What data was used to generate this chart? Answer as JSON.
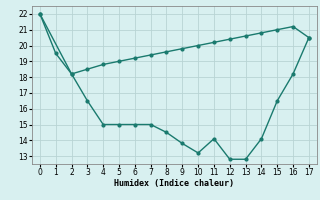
{
  "line1_x": [
    0,
    1,
    2,
    3,
    4,
    5,
    6,
    7,
    8,
    9,
    10,
    11,
    12,
    13,
    14,
    15,
    16,
    17
  ],
  "line1_y": [
    22,
    19.5,
    18.2,
    16.5,
    15.0,
    15.0,
    15.0,
    15.0,
    14.5,
    13.8,
    13.2,
    14.1,
    12.8,
    12.8,
    14.1,
    16.5,
    18.2,
    20.5
  ],
  "line2_x": [
    0,
    2,
    3,
    4,
    5,
    6,
    7,
    8,
    9,
    10,
    11,
    12,
    13,
    14,
    15,
    16,
    17
  ],
  "line2_y": [
    22,
    18.2,
    18.5,
    18.8,
    19.0,
    19.2,
    19.4,
    19.6,
    19.8,
    20.0,
    20.2,
    20.4,
    20.6,
    20.8,
    21.0,
    21.2,
    20.5
  ],
  "line_color": "#1a7a6e",
  "bg_color": "#d8f0f0",
  "grid_color": "#b8d4d4",
  "xlabel": "Humidex (Indice chaleur)",
  "xlim": [
    -0.5,
    17.5
  ],
  "ylim": [
    12.5,
    22.5
  ],
  "xticks": [
    0,
    1,
    2,
    3,
    4,
    5,
    6,
    7,
    8,
    9,
    10,
    11,
    12,
    13,
    14,
    15,
    16,
    17
  ],
  "yticks": [
    13,
    14,
    15,
    16,
    17,
    18,
    19,
    20,
    21,
    22
  ],
  "xlabel_fontsize": 6,
  "tick_fontsize": 5.5,
  "marker": "o",
  "marker_size": 2.0,
  "linewidth": 1.0
}
